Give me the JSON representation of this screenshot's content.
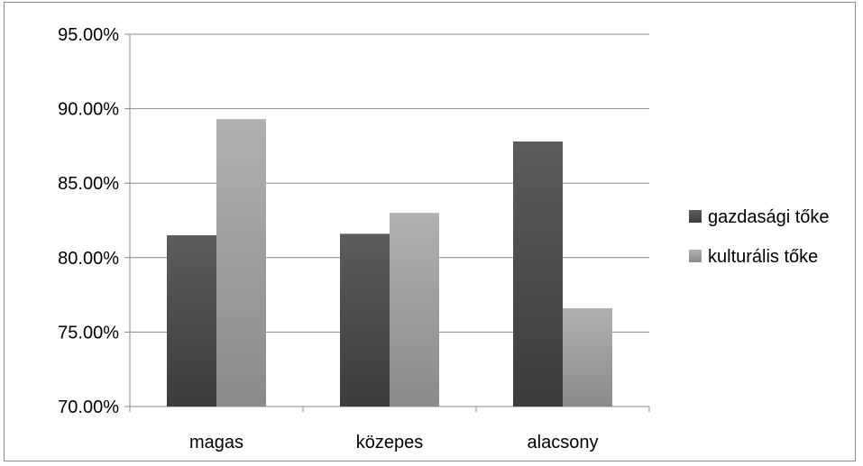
{
  "chart_data": {
    "type": "bar",
    "categories": [
      "magas",
      "közepes",
      "alacsony"
    ],
    "series": [
      {
        "name": "gazdasági tőke",
        "values": [
          81.5,
          81.6,
          87.8
        ],
        "color": "#4d4d4d"
      },
      {
        "name": "kulturális tőke",
        "values": [
          89.3,
          83.0,
          76.6
        ],
        "color": "#a0a0a0"
      }
    ],
    "ylim": [
      70,
      95
    ],
    "yticks": [
      70,
      75,
      80,
      85,
      90,
      95
    ],
    "ytick_labels": [
      "70.00%",
      "75.00%",
      "80.00%",
      "85.00%",
      "90.00%",
      "95.00%"
    ],
    "grid": true,
    "legend_position": "right",
    "title": "",
    "xlabel": "",
    "ylabel": ""
  }
}
